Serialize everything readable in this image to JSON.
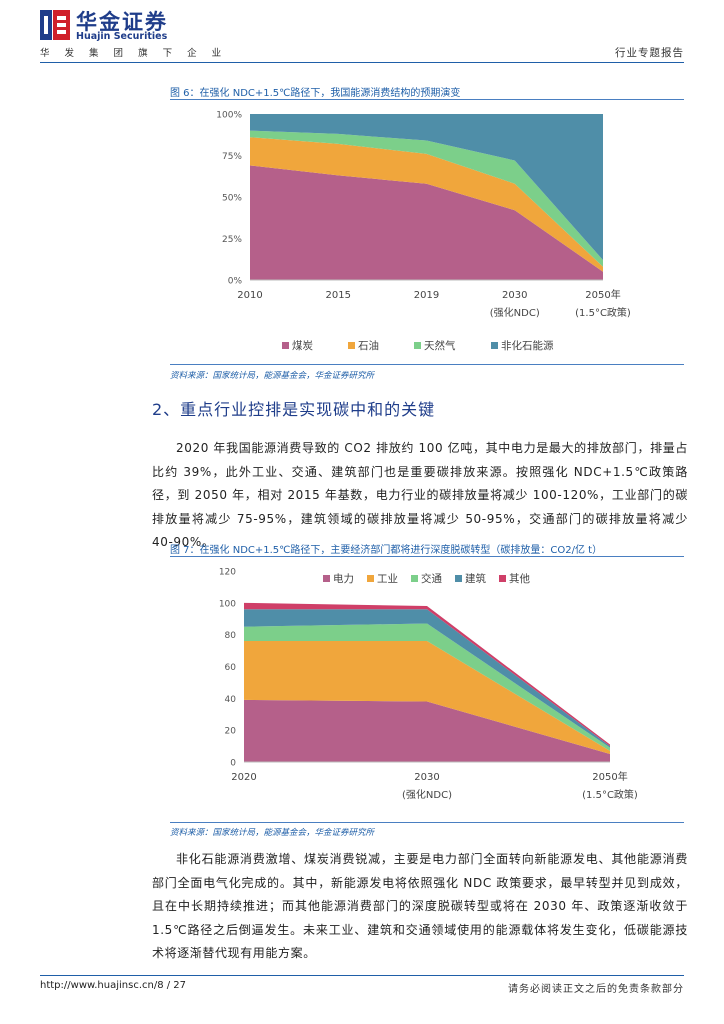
{
  "header": {
    "logo_cn": "华金证券",
    "logo_en": "Huajin Securities",
    "subtitle": "华 发 集 团 旗 下 企 业",
    "report_type": "行业专题报告"
  },
  "figure6": {
    "caption": "图 6：在强化 NDC+1.5℃路径下，我国能源消费结构的预期演变",
    "source": "资料来源：国家统计局，能源基金会，华金证券研究所"
  },
  "section": {
    "title": "2、重点行业控排是实现碳中和的关键",
    "paragraph1": "2020 年我国能源消费导致的 CO2 排放约 100 亿吨，其中电力是最大的排放部门，排量占比约 39%，此外工业、交通、建筑部门也是重要碳排放来源。按照强化 NDC+1.5℃政策路径，到 2050 年，相对 2015 年基数，电力行业的碳排放量将减少 100-120%，工业部门的碳排放量将减少 75-95%，建筑领域的碳排放量将减少 50-95%，交通部门的碳排放量将减少 40-90%。"
  },
  "figure7": {
    "caption": "图 7：在强化 NDC+1.5℃路径下，主要经济部门都将进行深度脱碳转型（碳排放量：CO2/亿 t）",
    "source": "资料来源：国家统计局，能源基金会，华金证券研究所"
  },
  "paragraph2": "非化石能源消费激增、煤炭消费锐减，主要是电力部门全面转向新能源发电、其他能源消费部门全面电气化完成的。其中，新能源发电将依照强化 NDC 政策要求，最早转型并见到成效，且在中长期持续推进；而其他能源消费部门的深度脱碳转型或将在 2030 年、政策逐渐收敛于 1.5℃路径之后倒逼发生。未来工业、建筑和交通领域使用的能源载体将发生变化，低碳能源技术将逐渐替代现有用能方案。",
  "footer": {
    "url": "http://www.huajinsc.cn/8 / 27",
    "disclaimer": "请务必阅读正文之后的免责条款部分"
  },
  "chart_data": [
    {
      "type": "area",
      "stacked": true,
      "categories": [
        [
          "2010"
        ],
        [
          "2015"
        ],
        [
          "2019"
        ],
        [
          "2030",
          "(强化NDC)"
        ],
        [
          "2050年",
          "(1.5°C政策)"
        ]
      ],
      "series": [
        {
          "name": "煤炭",
          "color": "#b5608a",
          "values": [
            69,
            63,
            58,
            42,
            5
          ]
        },
        {
          "name": "石油",
          "color": "#f0a63c",
          "values": [
            17,
            19,
            18,
            16,
            3
          ]
        },
        {
          "name": "天然气",
          "color": "#7ccf8a",
          "values": [
            4,
            6,
            8,
            14,
            4
          ]
        },
        {
          "name": "非化石能源",
          "color": "#4f8ea8",
          "values": [
            10,
            12,
            16,
            28,
            88
          ]
        }
      ],
      "yticks": [
        "0%",
        "25%",
        "50%",
        "75%",
        "100%"
      ],
      "ylim": [
        0,
        100
      ],
      "legend_position": "bottom"
    },
    {
      "type": "area",
      "stacked": true,
      "categories": [
        [
          "2020"
        ],
        [
          "2030",
          "(强化NDC)"
        ],
        [
          "2050年",
          "(1.5°C政策)"
        ]
      ],
      "series": [
        {
          "name": "电力",
          "color": "#b5608a",
          "values": [
            39,
            38,
            5
          ]
        },
        {
          "name": "工业",
          "color": "#f0a63c",
          "values": [
            37,
            38,
            2
          ]
        },
        {
          "name": "交通",
          "color": "#7ccf8a",
          "values": [
            9,
            11,
            2
          ]
        },
        {
          "name": "建筑",
          "color": "#4f8ea8",
          "values": [
            11,
            9,
            1
          ]
        },
        {
          "name": "其他",
          "color": "#cf3f68",
          "values": [
            4,
            2,
            1
          ]
        }
      ],
      "yticks": [
        "0",
        "20",
        "40",
        "60",
        "80",
        "100",
        "120"
      ],
      "ylim": [
        0,
        120
      ],
      "legend_position": "top"
    }
  ]
}
